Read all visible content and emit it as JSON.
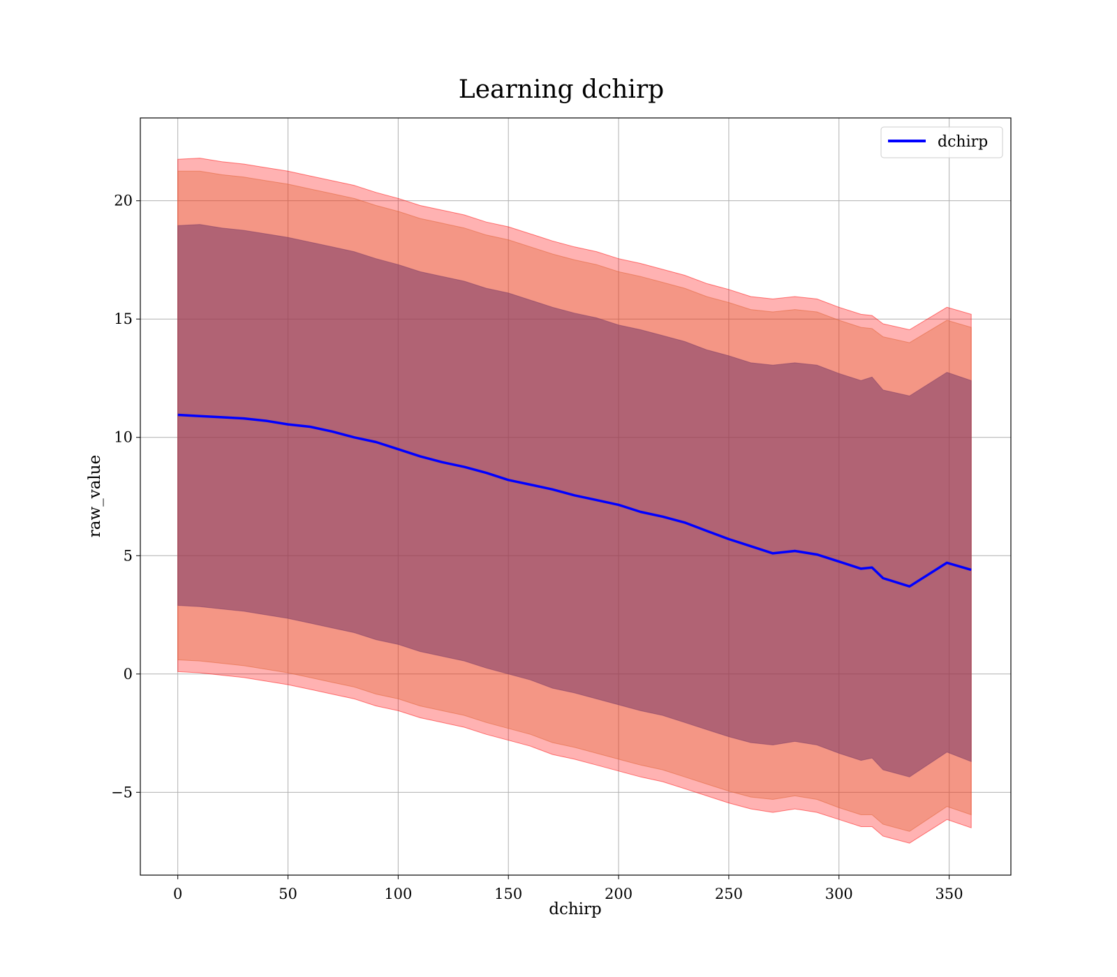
{
  "chart_data": {
    "type": "line",
    "title": "Learning dchirp",
    "xlabel": "dchirp",
    "ylabel": "raw_value",
    "xlim": [
      -17,
      378
    ],
    "ylim": [
      -8.5,
      23.5
    ],
    "grid": true,
    "legend_position": "top-right",
    "x_ticks": [
      0,
      50,
      100,
      150,
      200,
      250,
      300,
      350
    ],
    "x_tick_labels": [
      "0",
      "50",
      "100",
      "150",
      "200",
      "250",
      "300",
      "350"
    ],
    "y_ticks": [
      -5,
      0,
      5,
      10,
      15,
      20
    ],
    "y_tick_labels": [
      "−5",
      "0",
      "5",
      "10",
      "15",
      "20"
    ],
    "x": [
      0,
      10,
      20,
      30,
      40,
      50,
      60,
      70,
      80,
      90,
      100,
      110,
      120,
      130,
      140,
      150,
      160,
      170,
      180,
      190,
      200,
      210,
      220,
      230,
      240,
      250,
      260,
      270,
      280,
      290,
      300,
      310,
      315,
      320,
      332,
      349,
      360
    ],
    "series": [
      {
        "name": "dchirp",
        "color": "#0000ff",
        "values": [
          10.95,
          10.9,
          10.85,
          10.8,
          10.7,
          10.55,
          10.45,
          10.25,
          10.0,
          9.8,
          9.5,
          9.2,
          8.95,
          8.75,
          8.5,
          8.2,
          8.0,
          7.8,
          7.55,
          7.35,
          7.15,
          6.85,
          6.65,
          6.4,
          6.05,
          5.7,
          5.4,
          5.1,
          5.2,
          5.05,
          4.75,
          4.45,
          4.5,
          4.05,
          3.7,
          4.7,
          4.4
        ]
      }
    ],
    "bands": [
      {
        "kind": "outer",
        "color": "#ff0000",
        "opacity": 0.3,
        "upper": [
          21.75,
          21.8,
          21.65,
          21.55,
          21.4,
          21.25,
          21.05,
          20.85,
          20.65,
          20.35,
          20.1,
          19.8,
          19.6,
          19.4,
          19.1,
          18.9,
          18.6,
          18.3,
          18.05,
          17.85,
          17.55,
          17.35,
          17.1,
          16.85,
          16.5,
          16.25,
          15.95,
          15.85,
          15.95,
          15.85,
          15.5,
          15.2,
          15.15,
          14.8,
          14.55,
          15.5,
          15.2
        ],
        "lower": [
          0.1,
          0.05,
          -0.05,
          -0.15,
          -0.3,
          -0.45,
          -0.65,
          -0.85,
          -1.05,
          -1.35,
          -1.55,
          -1.85,
          -2.05,
          -2.25,
          -2.55,
          -2.8,
          -3.05,
          -3.4,
          -3.6,
          -3.85,
          -4.1,
          -4.35,
          -4.55,
          -4.85,
          -5.15,
          -5.45,
          -5.7,
          -5.85,
          -5.7,
          -5.85,
          -6.15,
          -6.45,
          -6.45,
          -6.85,
          -7.15,
          -6.15,
          -6.5
        ]
      },
      {
        "kind": "middle",
        "color": "#e06030",
        "opacity": 0.35,
        "upper": [
          21.25,
          21.25,
          21.1,
          21.0,
          20.85,
          20.7,
          20.5,
          20.3,
          20.1,
          19.8,
          19.55,
          19.25,
          19.05,
          18.85,
          18.55,
          18.35,
          18.05,
          17.75,
          17.5,
          17.3,
          17.0,
          16.8,
          16.55,
          16.3,
          15.95,
          15.7,
          15.4,
          15.3,
          15.4,
          15.3,
          14.95,
          14.65,
          14.6,
          14.25,
          14.0,
          14.95,
          14.65
        ],
        "lower": [
          0.6,
          0.55,
          0.45,
          0.35,
          0.2,
          0.05,
          -0.15,
          -0.35,
          -0.55,
          -0.85,
          -1.05,
          -1.35,
          -1.55,
          -1.75,
          -2.05,
          -2.3,
          -2.55,
          -2.9,
          -3.1,
          -3.35,
          -3.6,
          -3.85,
          -4.05,
          -4.35,
          -4.65,
          -4.95,
          -5.2,
          -5.3,
          -5.15,
          -5.3,
          -5.65,
          -5.95,
          -5.95,
          -6.35,
          -6.65,
          -5.6,
          -5.95
        ]
      },
      {
        "kind": "inner",
        "color": "#7a3a66",
        "opacity": 0.55,
        "upper": [
          18.95,
          19.0,
          18.85,
          18.75,
          18.6,
          18.45,
          18.25,
          18.05,
          17.85,
          17.55,
          17.3,
          17.0,
          16.8,
          16.6,
          16.3,
          16.1,
          15.8,
          15.5,
          15.25,
          15.05,
          14.75,
          14.55,
          14.3,
          14.05,
          13.7,
          13.45,
          13.15,
          13.05,
          13.15,
          13.05,
          12.7,
          12.4,
          12.55,
          12.0,
          11.75,
          12.75,
          12.4
        ],
        "lower": [
          2.9,
          2.85,
          2.75,
          2.65,
          2.5,
          2.35,
          2.15,
          1.95,
          1.75,
          1.45,
          1.25,
          0.95,
          0.75,
          0.55,
          0.25,
          0.0,
          -0.25,
          -0.6,
          -0.8,
          -1.05,
          -1.3,
          -1.55,
          -1.75,
          -2.05,
          -2.35,
          -2.65,
          -2.9,
          -3.0,
          -2.85,
          -3.0,
          -3.35,
          -3.65,
          -3.55,
          -4.05,
          -4.35,
          -3.3,
          -3.7
        ]
      }
    ]
  }
}
